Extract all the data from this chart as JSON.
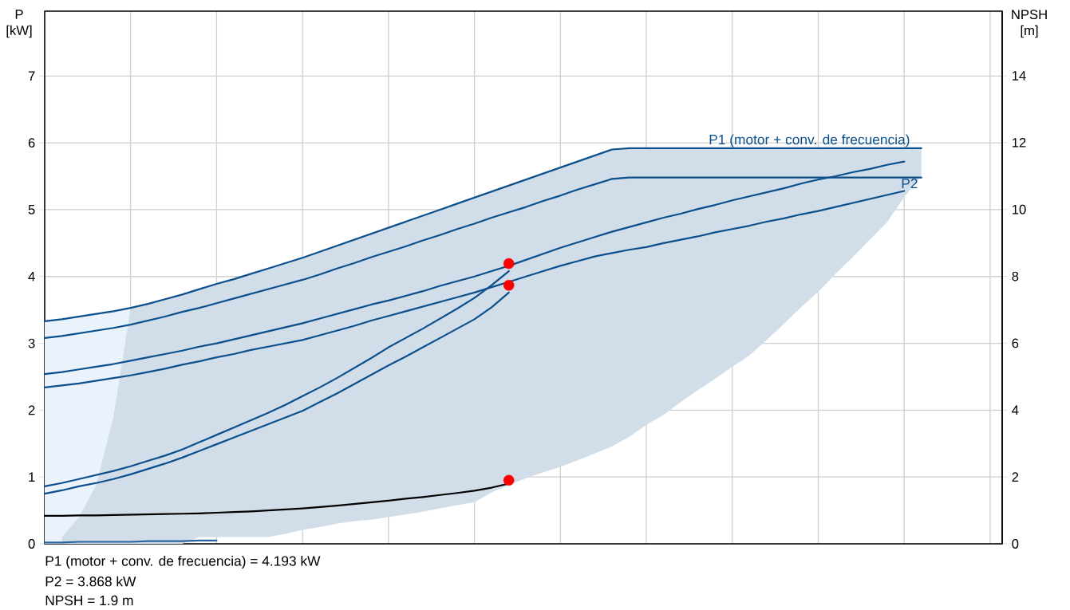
{
  "chart_data": {
    "type": "line",
    "categories": [
      null,
      null,
      null,
      null,
      null,
      null,
      null,
      null,
      null,
      null,
      null,
      null,
      null,
      null,
      null,
      null,
      null,
      null,
      null,
      null,
      null,
      null,
      null,
      null,
      null,
      null,
      null,
      null,
      null,
      null,
      null,
      null,
      null,
      null,
      null,
      null,
      null,
      null,
      null,
      null,
      null,
      null,
      null,
      null,
      null,
      null,
      null,
      null,
      null,
      null,
      null,
      null,
      null,
      null,
      null,
      null
    ],
    "ylabel": "P [kW]",
    "y2label": "NPSH [m]",
    "ylim": [
      0,
      7.97
    ],
    "yticks": [
      0,
      1,
      2,
      3,
      4,
      5,
      6,
      7
    ],
    "y2lim": [
      0,
      15.93
    ],
    "y2ticks": [
      0,
      2,
      4,
      6,
      8,
      10,
      12,
      14
    ],
    "grid": true,
    "tick_labels": [
      "y",
      "y2"
    ],
    "series": [
      {
        "type": "area",
        "color": "#eaf3fb",
        "values": [
          3.33,
          3.36,
          3.4,
          3.44,
          3.48,
          3.53,
          null,
          null,
          null,
          null,
          null,
          null,
          null,
          null,
          null,
          null,
          null,
          null,
          null,
          null,
          null,
          null,
          null,
          null,
          null,
          null,
          null,
          null,
          null,
          null,
          null,
          null,
          null,
          null,
          null,
          null,
          null,
          null,
          null,
          null,
          null,
          null,
          null,
          null,
          null,
          null,
          null,
          null,
          null,
          null,
          null,
          null,
          null,
          null,
          null,
          null
        ]
      },
      {
        "upper": [
          null,
          0.1,
          0.4,
          0.88,
          1.9,
          3.53,
          3.59,
          3.66,
          3.73,
          3.81,
          3.89,
          3.96,
          4.04,
          4.12,
          4.2,
          4.28,
          4.37,
          4.46,
          4.55,
          4.64,
          4.73,
          4.82,
          4.91,
          5.0,
          5.09,
          5.18,
          5.27,
          5.36,
          5.45,
          5.54,
          5.63,
          5.72,
          5.81,
          5.9,
          5.92,
          5.92,
          5.92,
          5.92,
          5.92,
          5.92,
          5.92,
          5.92,
          5.92,
          5.92,
          5.92,
          5.92,
          5.92,
          5.92,
          5.92,
          5.92,
          5.92,
          5.92,
          null,
          null,
          null,
          null
        ],
        "lower": [
          null,
          0,
          0,
          0,
          0,
          0,
          0,
          0,
          0,
          0.1,
          0.1,
          0.1,
          0.1,
          0.1,
          0.15,
          0.21,
          0.25,
          0.3,
          0.34,
          0.36,
          0.4,
          0.44,
          0.48,
          0.53,
          0.58,
          0.62,
          0.77,
          0.88,
          0.98,
          1.07,
          1.15,
          1.25,
          1.35,
          1.46,
          1.6,
          1.78,
          1.93,
          2.12,
          2.3,
          2.47,
          2.65,
          2.82,
          3.05,
          3.29,
          3.54,
          3.77,
          4.04,
          4.29,
          4.55,
          4.81,
          5.19,
          5.5,
          null,
          null,
          null,
          null
        ],
        "name": "P1 (motor + conv. de frecuencia)",
        "color": "#0b4f8c",
        "values": [
          3.33,
          3.36,
          3.4,
          3.44,
          3.48,
          3.53,
          3.59,
          3.66,
          3.73,
          3.81,
          3.89,
          3.96,
          4.04,
          4.12,
          4.2,
          4.28,
          4.37,
          4.46,
          4.55,
          4.64,
          4.73,
          4.82,
          4.91,
          5.0,
          5.09,
          5.18,
          5.27,
          5.36,
          5.45,
          5.54,
          5.63,
          5.72,
          5.81,
          5.9,
          5.92,
          5.92,
          5.92,
          5.92,
          5.92,
          5.92,
          5.92,
          5.92,
          5.92,
          5.92,
          5.92,
          5.92,
          5.92,
          5.92,
          5.92,
          5.92,
          5.92,
          5.92,
          null,
          null,
          null,
          null
        ]
      },
      {
        "name": "P2",
        "color": "#0b4f8c",
        "values": [
          3.08,
          3.11,
          3.15,
          3.19,
          3.23,
          3.28,
          3.34,
          3.4,
          3.47,
          3.53,
          3.6,
          3.67,
          3.74,
          3.81,
          3.88,
          3.95,
          4.03,
          4.12,
          4.2,
          4.29,
          4.37,
          4.45,
          4.54,
          4.62,
          4.71,
          4.79,
          4.88,
          4.96,
          5.04,
          5.13,
          5.21,
          5.3,
          5.38,
          5.46,
          5.48,
          5.48,
          5.48,
          5.48,
          5.48,
          5.48,
          5.48,
          5.48,
          5.48,
          5.48,
          5.48,
          5.48,
          5.48,
          5.48,
          5.48,
          5.48,
          5.48,
          5.48,
          null,
          null,
          null,
          null
        ]
      },
      {
        "color": "#0b4f8c",
        "values": [
          2.54,
          2.57,
          2.61,
          2.65,
          2.69,
          2.74,
          2.79,
          2.84,
          2.89,
          2.95,
          3.0,
          3.06,
          3.12,
          3.18,
          3.24,
          3.3,
          3.37,
          3.44,
          3.51,
          3.58,
          3.64,
          3.71,
          3.78,
          3.86,
          3.93,
          4.0,
          4.08,
          4.16,
          4.25,
          4.34,
          4.43,
          4.51,
          4.59,
          4.67,
          4.74,
          4.81,
          4.88,
          4.94,
          5.01,
          5.07,
          5.14,
          5.2,
          5.26,
          5.32,
          5.39,
          5.45,
          5.5,
          5.56,
          5.61,
          5.67,
          5.72,
          null,
          null,
          null,
          null,
          null
        ]
      },
      {
        "color": "#0b4f8c",
        "values": [
          2.34,
          2.37,
          2.4,
          2.44,
          2.48,
          2.52,
          2.57,
          2.62,
          2.68,
          2.73,
          2.79,
          2.84,
          2.9,
          2.95,
          3.0,
          3.05,
          3.12,
          3.19,
          3.26,
          3.34,
          3.41,
          3.48,
          3.55,
          3.62,
          3.69,
          3.76,
          3.84,
          3.92,
          4.0,
          4.08,
          4.16,
          4.23,
          4.3,
          4.35,
          4.4,
          4.44,
          4.5,
          4.55,
          4.6,
          4.66,
          4.71,
          4.76,
          4.82,
          4.87,
          4.93,
          4.98,
          5.04,
          5.1,
          5.16,
          5.22,
          5.28,
          null,
          null,
          null,
          null,
          null
        ]
      },
      {
        "color": "#0b4f8c",
        "values": [
          0.86,
          0.91,
          0.97,
          1.03,
          1.09,
          1.16,
          1.24,
          1.32,
          1.41,
          1.52,
          1.63,
          1.74,
          1.85,
          1.96,
          2.08,
          2.21,
          2.34,
          2.48,
          2.63,
          2.78,
          2.94,
          3.08,
          3.22,
          3.37,
          3.52,
          3.68,
          3.87,
          4.08,
          null,
          null,
          null,
          null,
          null,
          null,
          null,
          null,
          null,
          null,
          null,
          null,
          null,
          null,
          null,
          null,
          null,
          null,
          null,
          null,
          null,
          null,
          null,
          null,
          null,
          null,
          null,
          null
        ]
      },
      {
        "color": "#0b4f8c",
        "values": [
          0.75,
          0.8,
          0.86,
          0.91,
          0.97,
          1.04,
          1.12,
          1.2,
          1.29,
          1.39,
          1.49,
          1.59,
          1.69,
          1.79,
          1.89,
          1.99,
          2.12,
          2.25,
          2.39,
          2.53,
          2.67,
          2.8,
          2.94,
          3.08,
          3.22,
          3.36,
          3.54,
          3.76,
          null,
          null,
          null,
          null,
          null,
          null,
          null,
          null,
          null,
          null,
          null,
          null,
          null,
          null,
          null,
          null,
          null,
          null,
          null,
          null,
          null,
          null,
          null,
          null,
          null,
          null,
          null,
          null
        ]
      },
      {
        "color": "#2a64a0",
        "values": [
          0.02,
          0.02,
          0.03,
          0.03,
          0.03,
          0.03,
          0.04,
          0.04,
          0.04,
          0.05,
          0.05,
          null,
          null,
          null,
          null,
          null,
          null,
          null,
          null,
          null,
          null,
          null,
          null,
          null,
          null,
          null,
          null,
          null,
          null,
          null,
          null,
          null,
          null,
          null,
          null,
          null,
          null,
          null,
          null,
          null,
          null,
          null,
          null,
          null,
          null,
          null,
          null,
          null,
          null,
          null,
          null,
          null,
          null,
          null,
          null,
          null
        ]
      },
      {
        "color": "#000000",
        "axis": "y2",
        "values": [
          0.84,
          0.84,
          0.85,
          0.85,
          0.86,
          0.87,
          0.88,
          0.89,
          0.9,
          0.91,
          0.93,
          0.95,
          0.97,
          1.0,
          1.03,
          1.06,
          1.1,
          1.14,
          1.19,
          1.24,
          1.29,
          1.35,
          1.4,
          1.46,
          1.52,
          1.59,
          1.68,
          1.8,
          null,
          null,
          null,
          null,
          null,
          null,
          null,
          null,
          null,
          null,
          null,
          null,
          null,
          null,
          null,
          null,
          null,
          null,
          null,
          null,
          null,
          null,
          null,
          null,
          null,
          null,
          null,
          null
        ]
      },
      {
        "type": "scatter",
        "marker": "circle",
        "color": "#ff0000",
        "values": [
          null,
          null,
          null,
          null,
          null,
          null,
          null,
          null,
          null,
          null,
          null,
          null,
          null,
          null,
          null,
          null,
          null,
          null,
          null,
          null,
          null,
          null,
          null,
          null,
          null,
          null,
          null,
          4.193,
          null,
          null,
          null,
          null,
          null,
          null,
          null,
          null,
          null,
          null,
          null,
          null,
          null,
          null,
          null,
          null,
          null,
          null,
          null,
          null,
          null,
          null,
          null,
          null,
          null,
          null,
          null,
          null
        ]
      },
      {
        "type": "scatter",
        "marker": "circle",
        "color": "#ff0000",
        "values": [
          null,
          null,
          null,
          null,
          null,
          null,
          null,
          null,
          null,
          null,
          null,
          null,
          null,
          null,
          null,
          null,
          null,
          null,
          null,
          null,
          null,
          null,
          null,
          null,
          null,
          null,
          null,
          3.868,
          null,
          null,
          null,
          null,
          null,
          null,
          null,
          null,
          null,
          null,
          null,
          null,
          null,
          null,
          null,
          null,
          null,
          null,
          null,
          null,
          null,
          null,
          null,
          null,
          null,
          null,
          null,
          null
        ]
      },
      {
        "type": "scatter",
        "marker": "circle",
        "color": "#ff0000",
        "axis": "y2",
        "values": [
          null,
          null,
          null,
          null,
          null,
          null,
          null,
          null,
          null,
          null,
          null,
          null,
          null,
          null,
          null,
          null,
          null,
          null,
          null,
          null,
          null,
          null,
          null,
          null,
          null,
          null,
          null,
          1.9,
          null,
          null,
          null,
          null,
          null,
          null,
          null,
          null,
          null,
          null,
          null,
          null,
          null,
          null,
          null,
          null,
          null,
          null,
          null,
          null,
          null,
          null,
          null,
          null,
          null,
          null,
          null,
          null
        ]
      }
    ],
    "annotations": [
      "P1 (motor + conv. de frecuencia) = 4.193 kW",
      "P2 = 3.868 kW",
      "NPSH = 1.9 m"
    ]
  }
}
